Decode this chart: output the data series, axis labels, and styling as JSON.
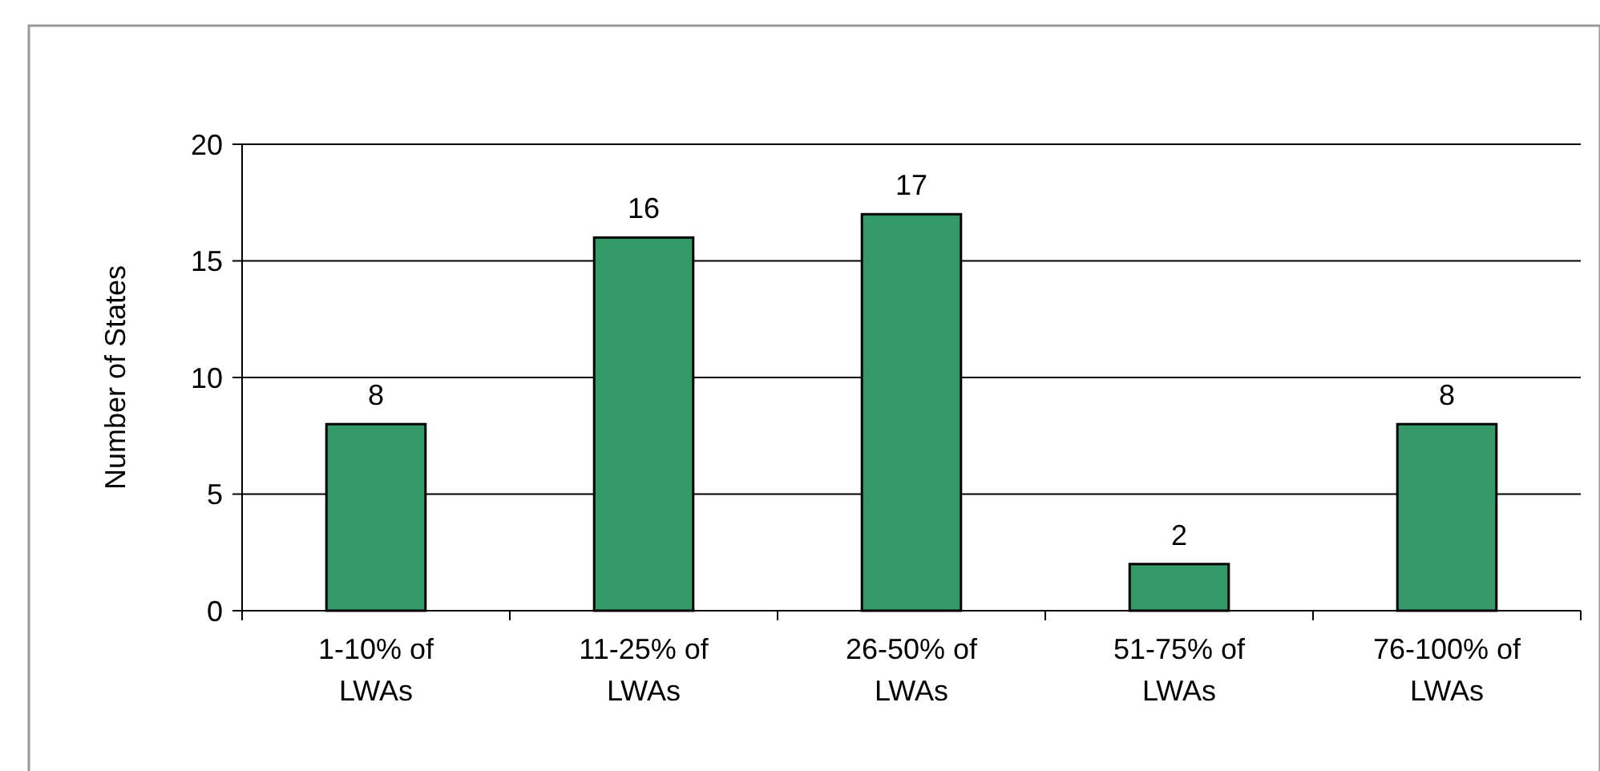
{
  "chart_data": {
    "type": "bar",
    "ylabel": "Number of States",
    "categories": [
      "1-10% of LWAs",
      "11-25% of LWAs",
      "26-50% of LWAs",
      "51-75% of LWAs",
      "76-100% of LWAs"
    ],
    "values": [
      8,
      16,
      17,
      2,
      8
    ],
    "color": "#339966",
    "ylim": [
      0,
      20
    ],
    "yticks": [
      0,
      5,
      10,
      15,
      20
    ],
    "grid": "y",
    "data_labels": true
  }
}
